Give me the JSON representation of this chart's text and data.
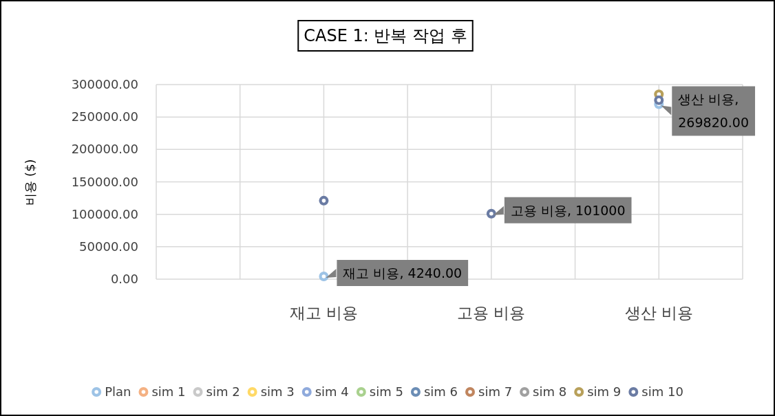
{
  "chart_data": {
    "type": "scatter",
    "title": "CASE 1: 반복 작업 후",
    "ylabel": "비용 ($)",
    "categories": [
      null,
      null,
      "재고 비용",
      null,
      "고용 비용",
      null,
      "생산 비용",
      null
    ],
    "ylim": [
      0,
      300000
    ],
    "yticks": [
      {
        "value": 0,
        "label": "0.00"
      },
      {
        "value": 50000,
        "label": "50000.00"
      },
      {
        "value": 100000,
        "label": "100000.00"
      },
      {
        "value": 150000,
        "label": "150000.00"
      },
      {
        "value": 200000,
        "label": "200000.00"
      },
      {
        "value": 250000,
        "label": "250000.00"
      },
      {
        "value": 300000,
        "label": "300000.00"
      }
    ],
    "grid": true,
    "legend": "bottom",
    "marker": "circle",
    "series": [
      {
        "name": "Plan",
        "color": "#9dc3e6",
        "values": [
          null,
          null,
          4240,
          null,
          null,
          null,
          269820,
          null
        ],
        "value_labels": [
          null,
          null,
          "재고 비용, 4240.00",
          null,
          null,
          null,
          "생산 비용,\n269820.00",
          null
        ]
      },
      {
        "name": "sim 1",
        "color": "#f4b183",
        "values": [
          null,
          null,
          null,
          null,
          null,
          null,
          null,
          null
        ]
      },
      {
        "name": "sim 2",
        "color": "#c9c9c9",
        "values": [
          null,
          null,
          null,
          null,
          null,
          null,
          null,
          null
        ]
      },
      {
        "name": "sim 3",
        "color": "#ffd966",
        "values": [
          null,
          null,
          null,
          null,
          null,
          null,
          null,
          null
        ]
      },
      {
        "name": "sim 4",
        "color": "#8faadc",
        "values": [
          null,
          null,
          null,
          null,
          null,
          null,
          null,
          null
        ]
      },
      {
        "name": "sim 5",
        "color": "#a9d18e",
        "values": [
          null,
          null,
          null,
          null,
          null,
          null,
          null,
          null
        ]
      },
      {
        "name": "sim 6",
        "color": "#6b8db5",
        "values": [
          null,
          null,
          null,
          null,
          null,
          null,
          null,
          null
        ]
      },
      {
        "name": "sim 7",
        "color": "#c0855e",
        "values": [
          null,
          null,
          null,
          null,
          null,
          null,
          null,
          null
        ]
      },
      {
        "name": "sim 8",
        "color": "#a0a0a0",
        "values": [
          null,
          null,
          null,
          null,
          null,
          null,
          null,
          null
        ]
      },
      {
        "name": "sim 9",
        "color": "#b8a05a",
        "values": [
          null,
          null,
          null,
          null,
          null,
          null,
          285000,
          null
        ]
      },
      {
        "name": "sim 10",
        "color": "#6a7ba3",
        "values": [
          null,
          null,
          121000,
          null,
          101000,
          null,
          276000,
          null
        ],
        "value_labels": [
          null,
          null,
          null,
          null,
          "고용 비용, 101000",
          null,
          null,
          null
        ]
      }
    ]
  }
}
